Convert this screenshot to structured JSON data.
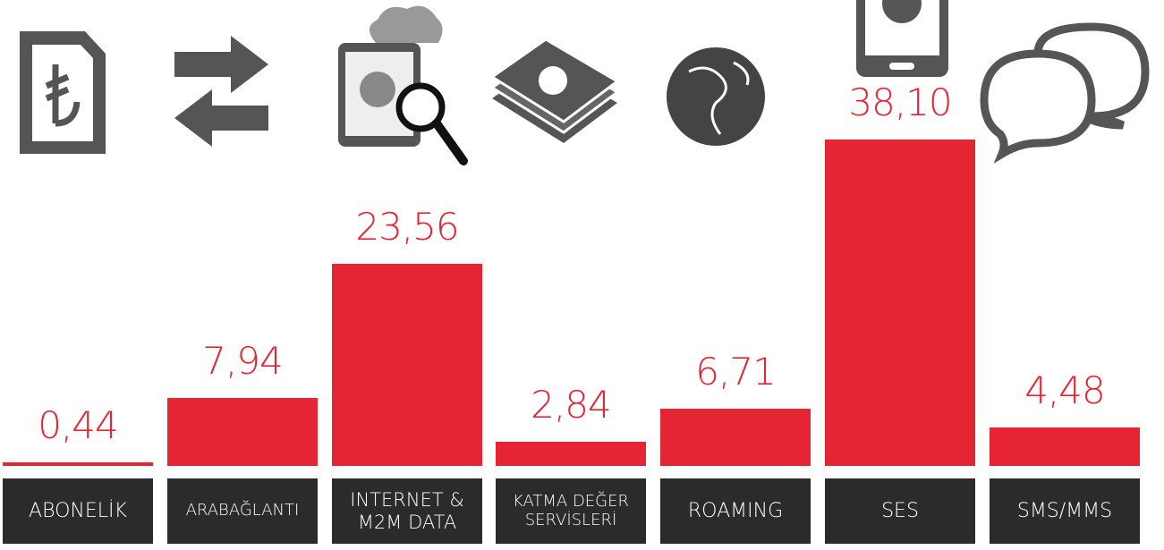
{
  "chart_data": {
    "type": "bar",
    "categories": [
      "ABONELİK",
      "ARABAĞLANTI",
      "INTERNET & M2M DATA",
      "KATMA DEĞER SERVİSLERİ",
      "ROAMING",
      "SES",
      "SMS/MMS"
    ],
    "values": [
      0.44,
      7.94,
      23.56,
      2.84,
      6.71,
      38.1,
      4.48
    ],
    "value_labels": [
      "0,44",
      "7,94",
      "23,56",
      "2,84",
      "6,71",
      "38,10",
      "4,48"
    ],
    "color": "#e62534"
  }
}
